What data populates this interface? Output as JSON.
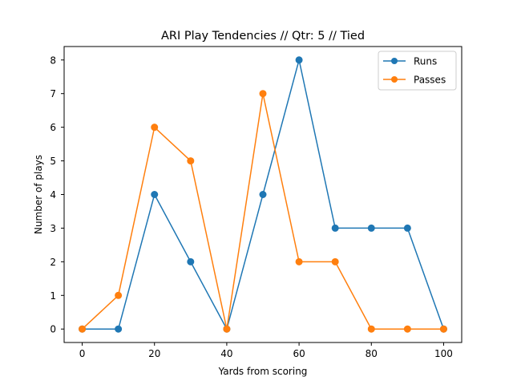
{
  "chart_data": {
    "type": "line",
    "title": "ARI Play Tendencies // Qtr: 5 // Tied",
    "xlabel": "Yards from scoring",
    "ylabel": "Number of plays",
    "x": [
      0,
      10,
      20,
      30,
      40,
      50,
      60,
      70,
      80,
      90,
      100
    ],
    "xlim": [
      -5,
      105
    ],
    "ylim": [
      -0.4,
      8.4
    ],
    "xticks": [
      0,
      20,
      40,
      60,
      80,
      100
    ],
    "yticks": [
      0,
      1,
      2,
      3,
      4,
      5,
      6,
      7,
      8
    ],
    "grid": false,
    "legend_position": "top-right",
    "series": [
      {
        "name": "Runs",
        "color": "#1f77b4",
        "marker": "circle",
        "values": [
          0,
          0,
          4,
          2,
          0,
          4,
          8,
          3,
          3,
          3,
          0
        ]
      },
      {
        "name": "Passes",
        "color": "#ff7f0e",
        "marker": "circle",
        "values": [
          0,
          1,
          6,
          5,
          0,
          7,
          2,
          2,
          0,
          0,
          0
        ]
      }
    ]
  }
}
